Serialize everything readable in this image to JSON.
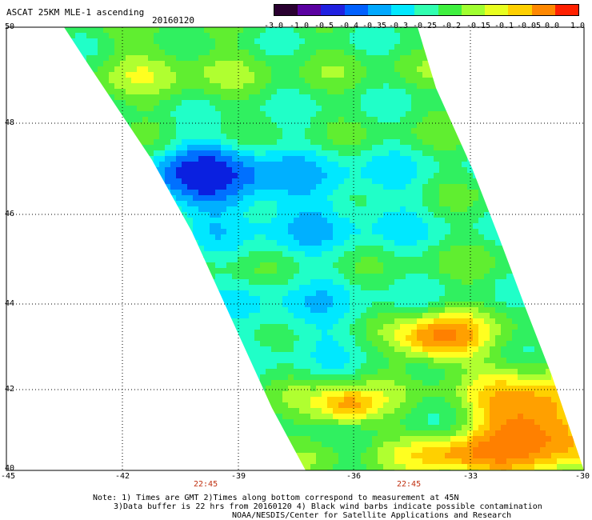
{
  "title": "ASCAT 25KM MLE-1 ascending",
  "date": "20160120",
  "colorbar": {
    "ticks": [
      "-3.0",
      "-1.0",
      "-0.5",
      "-0.4",
      "-0.35",
      "-0.3",
      "-0.25",
      "-0.2",
      "-0.15",
      "-0.1",
      "-0.05",
      "0.0",
      "1.0"
    ],
    "colors": [
      "#2a0030",
      "#5a00a0",
      "#2020e0",
      "#0060ff",
      "#00a8ff",
      "#00e8ff",
      "#30ffb0",
      "#40f040",
      "#a0ff30",
      "#e8ff20",
      "#ffd000",
      "#ff8800",
      "#ff2000"
    ]
  },
  "axes": {
    "x_ticks": [
      "-45",
      "-42",
      "-39",
      "-36",
      "-33",
      "-30"
    ],
    "y_ticks": [
      "50",
      "48",
      "46",
      "44",
      "42",
      "40"
    ]
  },
  "times": [
    "22:45",
    "22:45"
  ],
  "notes": [
    "Note: 1) Times are GMT 2)Times along bottom correspond to measurement at 45N",
    "3)Data buffer is 22 hrs from 20160120 4) Black wind barbs indicate possible contamination",
    "NOAA/NESDIS/Center for Satellite Applications and Research"
  ]
}
